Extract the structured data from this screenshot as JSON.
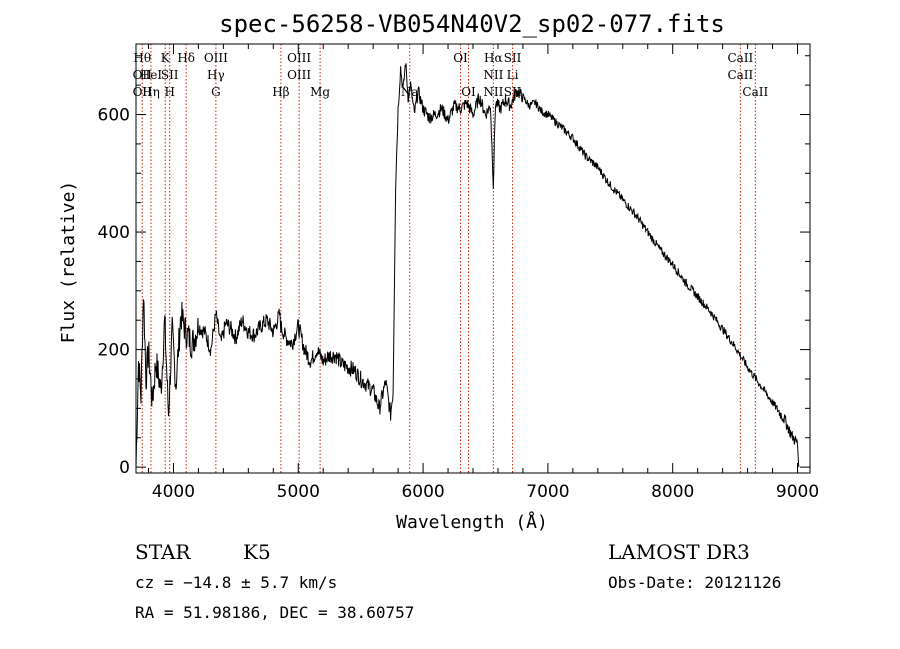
{
  "chart_data": {
    "type": "line",
    "title": "spec-56258-VB054N40V2_sp02-077.fits",
    "xlabel": "Wavelength (Å)",
    "ylabel": "Flux (relative)",
    "xlim": [
      3700,
      9100
    ],
    "ylim": [
      -10,
      720
    ],
    "xticks": [
      4000,
      5000,
      6000,
      7000,
      8000,
      9000
    ],
    "yticks": [
      0,
      200,
      400,
      600
    ],
    "xtick_labels": [
      "4000",
      "5000",
      "6000",
      "7000",
      "8000",
      "9000"
    ],
    "ytick_labels": [
      "0",
      "200",
      "400",
      "600"
    ],
    "series": [
      {
        "name": "flux",
        "x": [
          3700,
          3720,
          3740,
          3760,
          3780,
          3800,
          3830,
          3860,
          3900,
          3930,
          3960,
          3990,
          4020,
          4060,
          4100,
          4150,
          4200,
          4250,
          4300,
          4340,
          4380,
          4420,
          4460,
          4500,
          4550,
          4600,
          4650,
          4700,
          4750,
          4800,
          4850,
          4860,
          4900,
          4950,
          5000,
          5050,
          5100,
          5150,
          5200,
          5250,
          5300,
          5350,
          5400,
          5450,
          5500,
          5550,
          5600,
          5650,
          5700,
          5740,
          5760,
          5780,
          5800,
          5820,
          5840,
          5860,
          5880,
          5900,
          5930,
          5960,
          6000,
          6050,
          6100,
          6150,
          6200,
          6250,
          6300,
          6350,
          6400,
          6450,
          6500,
          6540,
          6563,
          6580,
          6620,
          6660,
          6700,
          6750,
          6800,
          6850,
          6900,
          6950,
          7000,
          7100,
          7200,
          7300,
          7400,
          7500,
          7600,
          7700,
          7800,
          7900,
          8000,
          8100,
          8200,
          8300,
          8400,
          8500,
          8600,
          8700,
          8800,
          8900,
          8950,
          9000,
          9010
        ],
        "y": [
          0,
          180,
          120,
          300,
          150,
          200,
          110,
          180,
          130,
          250,
          90,
          230,
          140,
          260,
          230,
          210,
          240,
          230,
          200,
          260,
          210,
          245,
          235,
          220,
          250,
          230,
          225,
          240,
          250,
          230,
          260,
          240,
          220,
          210,
          240,
          200,
          180,
          200,
          180,
          190,
          190,
          175,
          170,
          165,
          150,
          140,
          130,
          100,
          145,
          90,
          130,
          480,
          610,
          680,
          640,
          690,
          630,
          650,
          600,
          640,
          610,
          595,
          600,
          610,
          590,
          615,
          610,
          620,
          600,
          630,
          600,
          615,
          480,
          620,
          610,
          625,
          615,
          640,
          630,
          615,
          620,
          605,
          600,
          580,
          560,
          530,
          510,
          480,
          455,
          430,
          400,
          370,
          345,
          315,
          290,
          265,
          235,
          205,
          170,
          140,
          110,
          80,
          55,
          40,
          0
        ]
      }
    ],
    "vlines": [
      {
        "label_rows": [
          "Hθ",
          "OII",
          "OII"
        ],
        "x": 3750
      },
      {
        "label_rows": [
          "",
          "HeI",
          "Hη"
        ],
        "x": 3820
      },
      {
        "label_rows": [
          "K",
          "",
          ""
        ],
        "x": 3934
      },
      {
        "label_rows": [
          "",
          "SII",
          "H"
        ],
        "x": 3970
      },
      {
        "label_rows": [
          "Hδ",
          "",
          ""
        ],
        "x": 4102
      },
      {
        "label_rows": [
          "OIII",
          "Hγ",
          "G"
        ],
        "x": 4340
      },
      {
        "label_rows": [
          "",
          "",
          "Hβ"
        ],
        "x": 4861
      },
      {
        "label_rows": [
          "OIII",
          "OIII",
          ""
        ],
        "x": 5007
      },
      {
        "label_rows": [
          "",
          "",
          "Mg"
        ],
        "x": 5175
      },
      {
        "label_rows": [
          "",
          "",
          "Na"
        ],
        "x": 5893
      },
      {
        "label_rows": [
          "OI",
          "",
          ""
        ],
        "x": 6300
      },
      {
        "label_rows": [
          "",
          "",
          "OI"
        ],
        "x": 6364
      },
      {
        "label_rows": [
          "Hα",
          "NII",
          "NII"
        ],
        "x": 6563
      },
      {
        "label_rows": [
          "SII",
          "Li",
          "SII"
        ],
        "x": 6717
      },
      {
        "label_rows": [
          "CaII",
          "CaII",
          ""
        ],
        "x": 8542
      },
      {
        "label_rows": [
          "",
          "",
          "CaII"
        ],
        "x": 8662
      }
    ]
  },
  "info": {
    "object_class": "STAR",
    "subclass": "K5",
    "cz": "cz = −14.8 ± 5.7 km/s",
    "coords": "RA =  51.98186, DEC =  38.60757",
    "survey": "LAMOST DR3",
    "obs_date": "Obs-Date: 20121126"
  },
  "colors": {
    "spectrum": "#000000",
    "line_marker": "#cc2200"
  }
}
